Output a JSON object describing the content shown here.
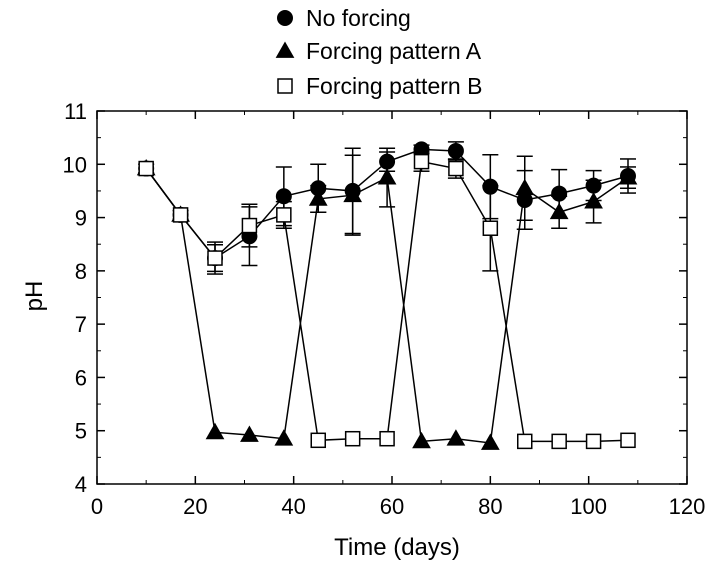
{
  "chart_data": {
    "type": "line",
    "title": "",
    "xlabel": "Time (days)",
    "ylabel": "pH",
    "xlim": [
      0,
      120
    ],
    "ylim": [
      4,
      11
    ],
    "xticks": [
      0,
      20,
      40,
      60,
      80,
      100,
      120
    ],
    "yticks": [
      4,
      5,
      6,
      7,
      8,
      9,
      10,
      11
    ],
    "grid": false,
    "legend_position": "top-center",
    "x": [
      10,
      17,
      24,
      31,
      38,
      45,
      52,
      59,
      66,
      73,
      80,
      87,
      94,
      101,
      108
    ],
    "series": [
      {
        "name": "No forcing",
        "marker": "filled-circle",
        "color": "#000000",
        "values": [
          9.92,
          9.05,
          8.24,
          8.65,
          9.4,
          9.55,
          9.5,
          10.05,
          10.28,
          10.25,
          9.58,
          9.33,
          9.45,
          9.6,
          9.78
        ],
        "errors": [
          0.08,
          0.08,
          0.3,
          0.55,
          0.55,
          0.45,
          0.8,
          0.18,
          0.08,
          0.17,
          0.6,
          0.55,
          0.45,
          0.28,
          0.32
        ]
      },
      {
        "name": "Forcing pattern A",
        "marker": "filled-triangle",
        "color": "#000000",
        "values": [
          9.92,
          9.05,
          4.97,
          4.92,
          4.85,
          9.35,
          9.42,
          9.75,
          4.8,
          4.85,
          4.77,
          9.55,
          9.1,
          9.3,
          9.75
        ],
        "errors": [
          0.05,
          0.05,
          0.05,
          0.05,
          0.05,
          0.25,
          0.75,
          0.55,
          0.05,
          0.05,
          0.05,
          0.6,
          0.3,
          0.4,
          0.2
        ]
      },
      {
        "name": "Forcing pattern B",
        "marker": "open-square",
        "color": "#000000",
        "values": [
          9.92,
          9.05,
          8.24,
          8.85,
          9.05,
          4.82,
          4.85,
          4.85,
          10.05,
          9.92,
          8.8,
          4.8,
          4.8,
          4.8,
          4.82
        ],
        "errors": [
          0.05,
          0.05,
          0.25,
          0.4,
          0.25,
          0.05,
          0.05,
          0.05,
          0.18,
          0.18,
          0.8,
          0.05,
          0.05,
          0.05,
          0.05
        ]
      }
    ]
  }
}
